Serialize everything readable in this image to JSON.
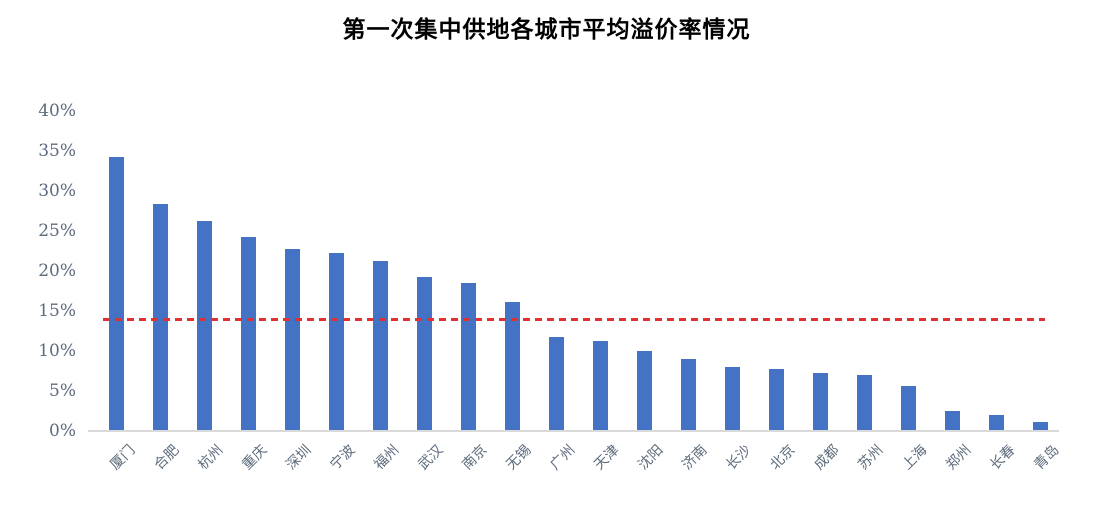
{
  "title": "第一次集中供地各城市平均溢价率情况",
  "chart_data": {
    "type": "bar",
    "title": "第一次集中供地各城市平均溢价率情况",
    "categories": [
      "厦门",
      "合肥",
      "杭州",
      "重庆",
      "深圳",
      "宁波",
      "福州",
      "武汉",
      "南京",
      "无锡",
      "广州",
      "天津",
      "沈阳",
      "济南",
      "长沙",
      "北京",
      "成都",
      "苏州",
      "上海",
      "郑州",
      "长春",
      "青岛"
    ],
    "values": [
      34.3,
      28.4,
      26.3,
      24.3,
      22.8,
      22.2,
      21.3,
      19.2,
      18.5,
      16.1,
      11.8,
      11.2,
      10.0,
      9.0,
      8.0,
      7.7,
      7.2,
      7.0,
      5.6,
      2.5,
      2.0,
      1.1
    ],
    "unit": "%",
    "xlabel": "",
    "ylabel": "",
    "ylim": [
      0,
      40
    ],
    "ytick_step": 5,
    "ytick_labels": [
      "0%",
      "5%",
      "10%",
      "15%",
      "20%",
      "25%",
      "30%",
      "35%",
      "40%"
    ],
    "grid": false,
    "legend": false,
    "reference_line": {
      "value": 14,
      "style": "dashed"
    }
  },
  "colors": {
    "bar": "#4472c4",
    "reference_line": "#e03131",
    "axis_label": "#5d6b7c",
    "axis_line": "#d9d9d9",
    "title": "#000000"
  }
}
